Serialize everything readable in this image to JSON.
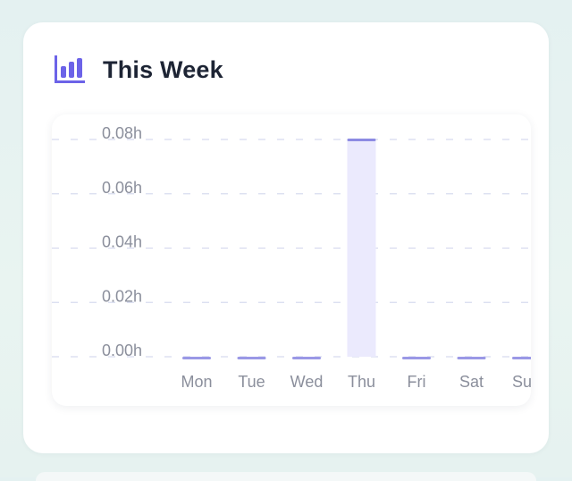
{
  "card": {
    "title": "This Week",
    "icon": "bar-chart-icon"
  },
  "colors": {
    "bar_fill": "#ebeafd",
    "bar_top": "#8d8be3",
    "zero_mark": "#9a98e6",
    "icon": "#6c63e8",
    "grid": "#d8dbef",
    "tick_text": "#8b8f9c"
  },
  "chart_data": {
    "type": "bar",
    "title": "This Week",
    "xlabel": "",
    "ylabel": "",
    "categories": [
      "Mon",
      "Tue",
      "Wed",
      "Thu",
      "Fri",
      "Sat",
      "Sun"
    ],
    "values": [
      0,
      0,
      0,
      0.08,
      0,
      0,
      0
    ],
    "ylim": [
      0,
      0.08
    ],
    "yticks": [
      0,
      0.02,
      0.04,
      0.06,
      0.08
    ],
    "ytick_labels": [
      "0.00h",
      "0.02h",
      "0.04h",
      "0.06h",
      "0.08h"
    ],
    "grid": "dashed-horizontal",
    "legend": "none"
  }
}
